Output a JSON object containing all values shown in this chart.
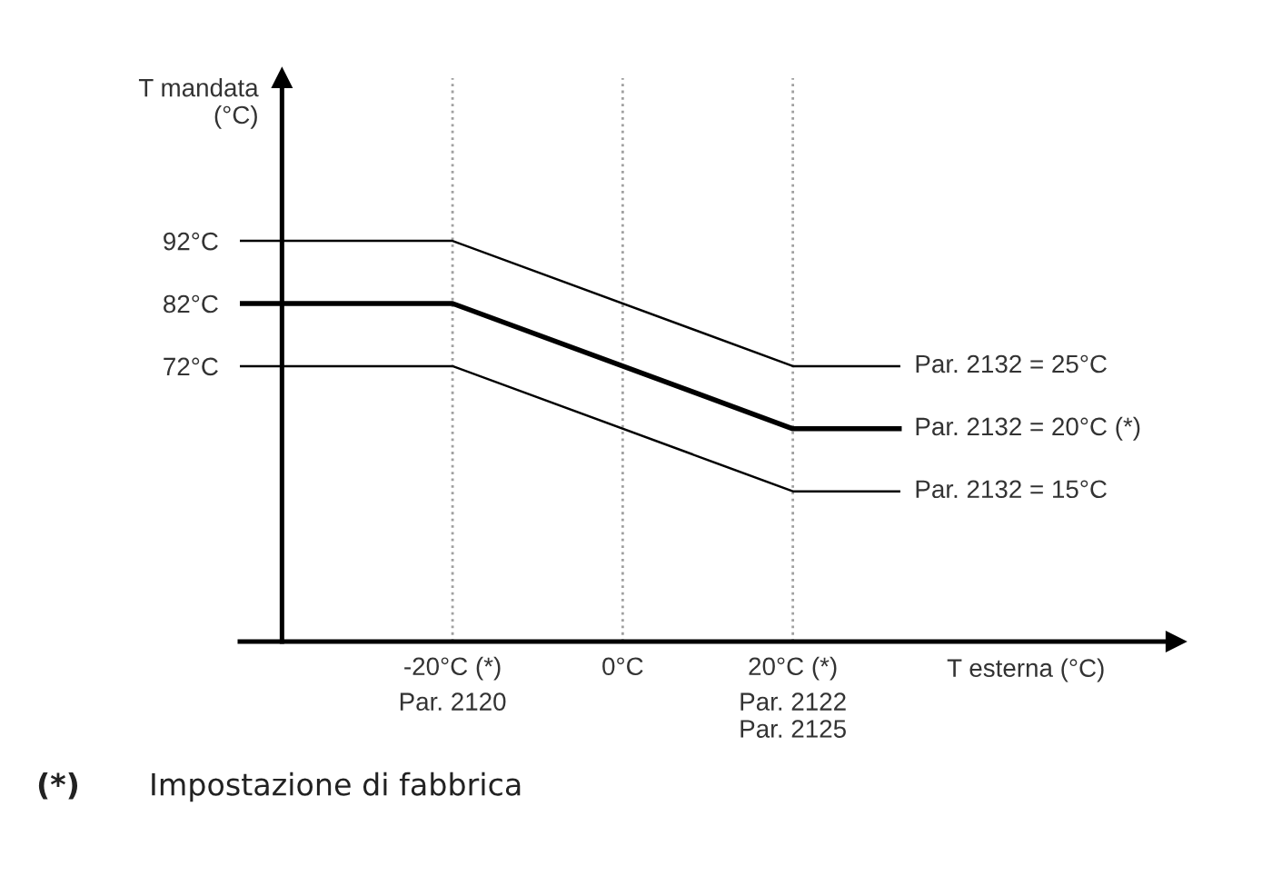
{
  "chart_data": {
    "type": "line",
    "xlabel": "T esterna (°C)",
    "ylabel": "T mandata\n(°C)",
    "xlim": [
      -45,
      65
    ],
    "ylim": [
      28,
      118
    ],
    "xticks": [
      {
        "value": -20,
        "label": "-20°C (*)"
      },
      {
        "value": 0,
        "label": "0°C"
      },
      {
        "value": 20,
        "label": "20°C (*)"
      }
    ],
    "yticks": [
      {
        "value": 92,
        "label": "92°C"
      },
      {
        "value": 82,
        "label": "82°C"
      },
      {
        "value": 72,
        "label": "72°C"
      }
    ],
    "x": [
      -45,
      -20,
      20,
      32.5
    ],
    "series": [
      {
        "name": "Par. 2132 = 25°C",
        "color": "#000000",
        "values": [
          92,
          92,
          72,
          72
        ]
      },
      {
        "name": "Par. 2132 = 20°C (*)",
        "color": "#000000",
        "values": [
          82,
          82,
          62,
          62
        ]
      },
      {
        "name": "Par. 2132 = 15°C",
        "color": "#000000",
        "values": [
          72,
          72,
          52,
          52
        ]
      }
    ],
    "ref_lines": [
      {
        "axis": "x",
        "value": -20,
        "color": "#a0a0a0",
        "line_style": "dotted"
      },
      {
        "axis": "x",
        "value": 0,
        "color": "#a0a0a0",
        "line_style": "dotted"
      },
      {
        "axis": "x",
        "value": 20,
        "color": "#a0a0a0",
        "line_style": "dotted"
      }
    ],
    "annotations": [
      "Par. 2120",
      "Par. 2122\nPar. 2125",
      "(*)",
      "Impostazione di fabbrica"
    ],
    "grid": false,
    "legend": false,
    "marker": "none",
    "line_style": "solid"
  }
}
